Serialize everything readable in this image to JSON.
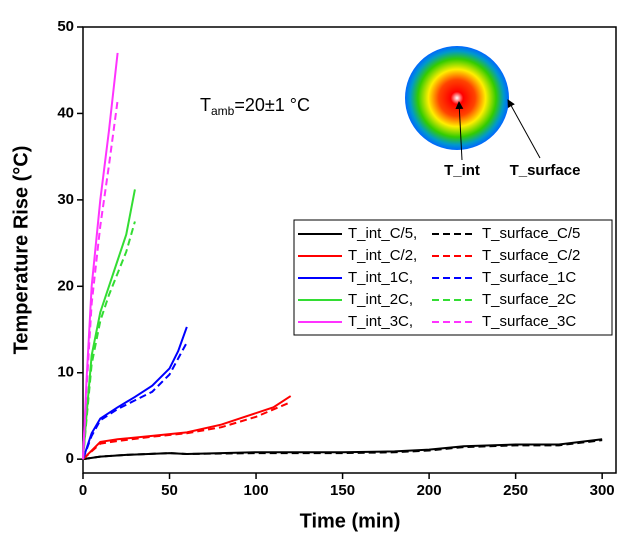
{
  "chart_data": {
    "type": "line",
    "xlabel": "Time (min)",
    "ylabel": "Temperature Rise (°C)",
    "xlim": [
      0,
      308
    ],
    "ylim": [
      -1.6,
      50
    ],
    "xticks": [
      0,
      50,
      100,
      150,
      200,
      250,
      300
    ],
    "yticks": [
      0,
      10,
      20,
      30,
      40,
      50
    ],
    "legend": "right",
    "annotation": {
      "main": "T",
      "sub": "amb",
      "rest": "=20±1 °C"
    },
    "inset_labels": [
      "T_int",
      "T_surface"
    ],
    "series": [
      {
        "name": "T_int_C/5,",
        "color": "#000000",
        "style": "solid",
        "x": [
          0,
          10,
          25,
          50,
          60,
          100,
          150,
          180,
          200,
          220,
          250,
          275,
          300
        ],
        "values": [
          0,
          0.3,
          0.5,
          0.7,
          0.6,
          0.8,
          0.8,
          0.9,
          1.1,
          1.5,
          1.7,
          1.7,
          2.3
        ]
      },
      {
        "name": "T_surface_C/5",
        "color": "#000000",
        "style": "dashed",
        "x": [
          0,
          10,
          25,
          50,
          60,
          100,
          150,
          180,
          200,
          220,
          250,
          275,
          300
        ],
        "values": [
          0,
          0.3,
          0.5,
          0.7,
          0.6,
          0.7,
          0.7,
          0.8,
          1.0,
          1.4,
          1.6,
          1.6,
          2.2
        ]
      },
      {
        "name": "T_int_C/2,",
        "color": "#ff0000",
        "style": "solid",
        "x": [
          0,
          5,
          10,
          20,
          40,
          60,
          80,
          95,
          110,
          120
        ],
        "values": [
          0,
          1,
          2,
          2.3,
          2.7,
          3.1,
          4,
          5,
          6,
          7.3
        ]
      },
      {
        "name": "T_surface_C/2",
        "color": "#ff0000",
        "style": "dashed",
        "x": [
          0,
          10,
          20,
          40,
          60,
          80,
          100,
          120
        ],
        "values": [
          0,
          1.8,
          2.1,
          2.6,
          3,
          3.7,
          4.9,
          6.6
        ]
      },
      {
        "name": "T_int_1C,",
        "color": "#0000ff",
        "style": "solid",
        "x": [
          0,
          5,
          10,
          20,
          30,
          40,
          50,
          55,
          60
        ],
        "values": [
          0,
          3,
          4.7,
          6,
          7.2,
          8.5,
          10.5,
          12.5,
          15.3
        ]
      },
      {
        "name": "T_surface_1C",
        "color": "#0000ff",
        "style": "dashed",
        "x": [
          0,
          5,
          10,
          20,
          30,
          40,
          50,
          60
        ],
        "values": [
          0,
          2.7,
          4.5,
          5.8,
          6.8,
          7.8,
          9.8,
          13.5
        ]
      },
      {
        "name": "T_int_2C,",
        "color": "#33dd33",
        "style": "solid",
        "x": [
          0,
          2,
          5,
          10,
          15,
          20,
          25,
          30
        ],
        "values": [
          0,
          5,
          12,
          17,
          20,
          23,
          26,
          31.2
        ]
      },
      {
        "name": "T_surface_2C",
        "color": "#33dd33",
        "style": "dashed",
        "x": [
          0,
          2,
          5,
          10,
          15,
          20,
          25,
          30
        ],
        "values": [
          0,
          4.5,
          11,
          16,
          19,
          21.5,
          24,
          27.5
        ]
      },
      {
        "name": "T_int_3C,",
        "color": "#ff33ff",
        "style": "solid",
        "x": [
          0,
          2,
          5,
          10,
          15,
          20
        ],
        "values": [
          0,
          9,
          20,
          30,
          38,
          47
        ]
      },
      {
        "name": "T_surface_3C",
        "color": "#ff33ff",
        "style": "dashed",
        "x": [
          0,
          2,
          5,
          10,
          15,
          20
        ],
        "values": [
          0,
          8,
          18,
          27,
          34,
          41.5
        ]
      }
    ]
  }
}
